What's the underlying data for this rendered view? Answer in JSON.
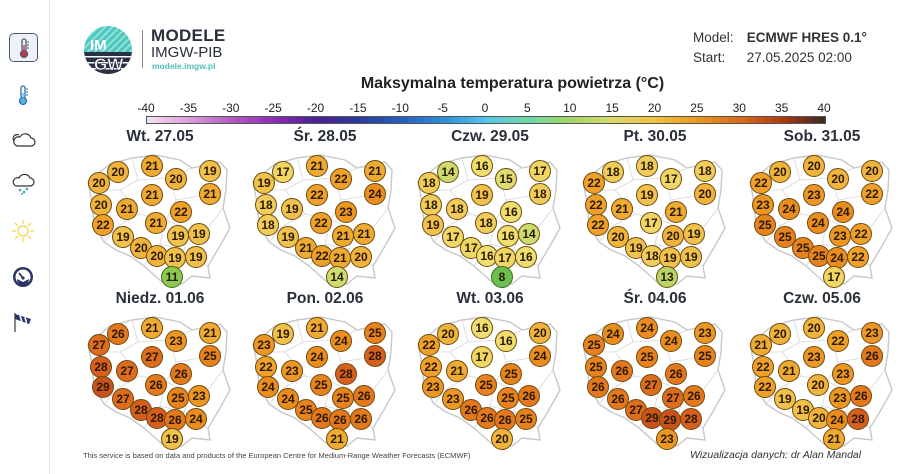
{
  "sidebar": {
    "items": [
      {
        "name": "max-temperature",
        "icon": "thermometer-hot-icon",
        "active": true
      },
      {
        "name": "min-temperature",
        "icon": "thermometer-cold-icon",
        "active": false
      },
      {
        "name": "cloudiness",
        "icon": "cloud-icon",
        "active": false
      },
      {
        "name": "precipitation",
        "icon": "cloud-snow-rain-icon",
        "active": false
      },
      {
        "name": "sunshine",
        "icon": "sun-icon",
        "active": false
      },
      {
        "name": "pressure",
        "icon": "gauge-icon",
        "active": false
      },
      {
        "name": "wind",
        "icon": "windsock-icon",
        "active": false
      }
    ]
  },
  "brand": {
    "logo_text_top": "IM",
    "logo_text_bottom": "GW",
    "title": "MODELE",
    "subtitle": "IMGW-PIB",
    "url": "modele.imgw.pl"
  },
  "meta": {
    "model_label": "Model:",
    "model_value": "ECMWF HRES 0.1°",
    "start_label": "Start:",
    "start_value": "27.05.2025 02:00"
  },
  "legend": {
    "title": "Maksymalna temperatura powietrza (°C)",
    "ticks": [
      "-40",
      "-35",
      "-30",
      "-25",
      "-20",
      "-15",
      "-10",
      "-5",
      "0",
      "5",
      "10",
      "15",
      "20",
      "25",
      "30",
      "35",
      "40"
    ],
    "colors": {
      "cold": "#f3e1f4",
      "mid": "#58c6e8",
      "warm": "#f0c040",
      "hot": "#3a2a25"
    }
  },
  "panels": [
    {
      "day": "Wt. 27.05",
      "values": [
        20,
        21,
        20,
        19,
        20,
        21,
        21,
        20,
        21,
        22,
        22,
        21,
        19,
        19,
        19,
        20,
        20,
        19,
        19,
        11
      ]
    },
    {
      "day": "Śr. 28.05",
      "values": [
        17,
        21,
        22,
        21,
        19,
        22,
        24,
        18,
        19,
        23,
        18,
        22,
        19,
        21,
        21,
        21,
        22,
        21,
        20,
        14
      ]
    },
    {
      "day": "Czw. 29.05",
      "values": [
        14,
        16,
        15,
        17,
        18,
        19,
        18,
        18,
        18,
        16,
        19,
        18,
        17,
        16,
        14,
        17,
        16,
        17,
        16,
        8
      ]
    },
    {
      "day": "Pt. 30.05",
      "values": [
        18,
        18,
        17,
        18,
        22,
        19,
        20,
        22,
        21,
        21,
        22,
        17,
        20,
        20,
        19,
        19,
        18,
        19,
        19,
        13
      ]
    },
    {
      "day": "Sob. 31.05",
      "values": [
        20,
        20,
        20,
        20,
        22,
        23,
        22,
        23,
        24,
        24,
        25,
        24,
        25,
        23,
        22,
        25,
        25,
        24,
        22,
        17
      ]
    },
    {
      "day": "Niedz. 01.06",
      "values": [
        26,
        21,
        23,
        21,
        27,
        27,
        25,
        28,
        27,
        26,
        29,
        26,
        27,
        25,
        23,
        28,
        28,
        26,
        24,
        19
      ]
    },
    {
      "day": "Pon. 02.06",
      "values": [
        19,
        21,
        24,
        25,
        23,
        24,
        28,
        22,
        23,
        28,
        24,
        25,
        24,
        25,
        26,
        25,
        26,
        26,
        26,
        21
      ]
    },
    {
      "day": "Wt. 03.06",
      "values": [
        20,
        16,
        16,
        20,
        22,
        17,
        24,
        22,
        21,
        25,
        23,
        25,
        23,
        25,
        26,
        26,
        26,
        26,
        25,
        20
      ]
    },
    {
      "day": "Śr. 04.06",
      "values": [
        24,
        24,
        24,
        23,
        25,
        25,
        25,
        25,
        26,
        26,
        26,
        27,
        26,
        27,
        26,
        27,
        29,
        29,
        28,
        23
      ]
    },
    {
      "day": "Czw. 05.06",
      "values": [
        20,
        20,
        22,
        23,
        21,
        23,
        26,
        22,
        21,
        23,
        22,
        20,
        19,
        23,
        26,
        19,
        20,
        24,
        28,
        21
      ]
    }
  ],
  "footer": {
    "attribution": "This service is based on data and products of the European Centre for Medium-Range Weather Forecasts (ECMWF)",
    "credit": "Wizualizacja danych: dr Alan Mandal"
  }
}
